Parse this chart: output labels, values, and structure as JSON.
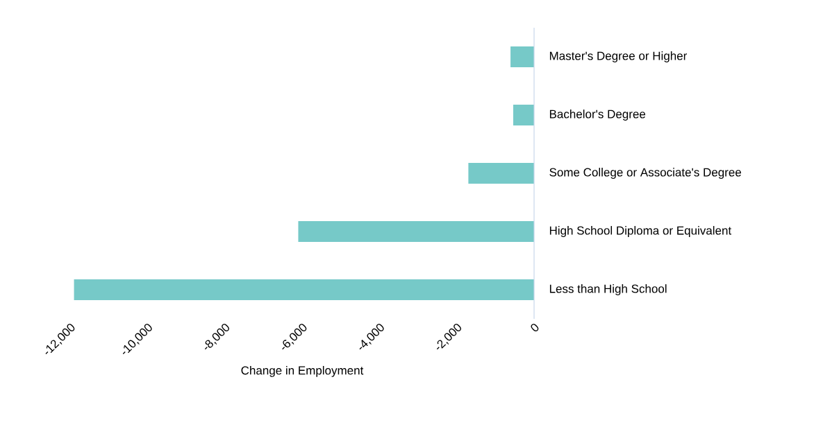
{
  "chart_data": {
    "type": "bar",
    "orientation": "horizontal",
    "xlabel": "Change in Employment",
    "categories": [
      "Master's Degree or Higher",
      "Bachelor's Degree",
      "Some College or Associate's Degree",
      "High School Diploma or Equivalent",
      "Less than High School"
    ],
    "values": [
      -610,
      -540,
      -1700,
      -6100,
      -11900
    ],
    "color": "#76c9c8",
    "xlim": [
      -12000,
      0
    ],
    "xticks": [
      {
        "value": -12000,
        "label": "-12,000"
      },
      {
        "value": -10000,
        "label": "-10,000"
      },
      {
        "value": -8000,
        "label": "-8,000"
      },
      {
        "value": -6000,
        "label": "-6,000"
      },
      {
        "value": -4000,
        "label": "-4,000"
      },
      {
        "value": -2000,
        "label": "-2,000"
      },
      0
    ],
    "grid": false
  }
}
